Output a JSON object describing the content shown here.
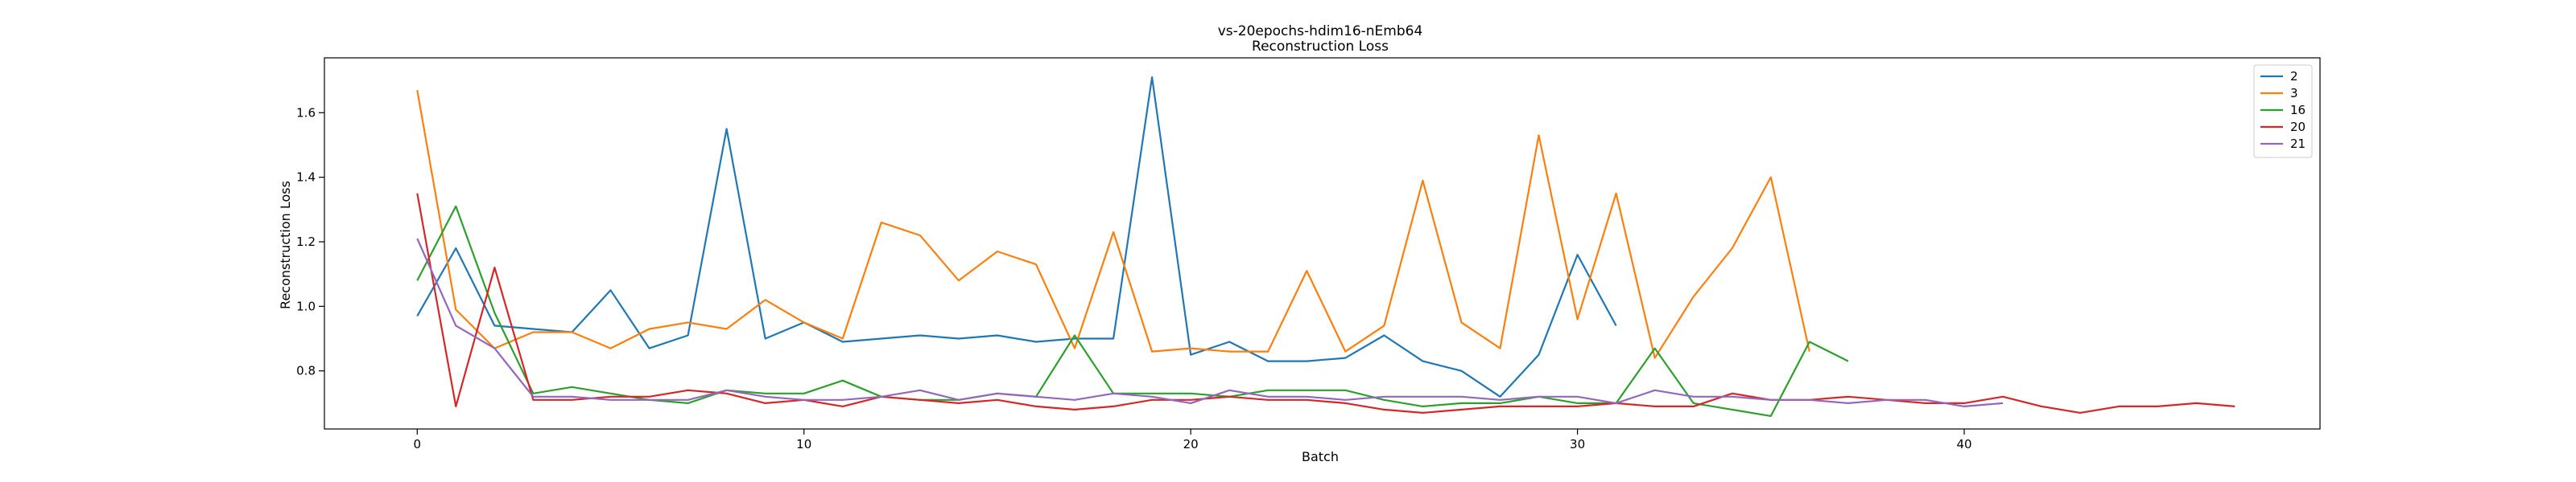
{
  "chart_data": {
    "type": "line",
    "title": "vs-20epochs-hdim16-nEmb64",
    "subtitle": "Reconstruction Loss",
    "xlabel": "Batch",
    "ylabel": "Reconstruction Loss",
    "xlim": [
      -2.4,
      49.2
    ],
    "ylim": [
      0.62,
      1.77
    ],
    "xticks": [
      0,
      10,
      20,
      30,
      40
    ],
    "yticks": [
      0.8,
      1.0,
      1.2,
      1.4,
      1.6
    ],
    "ytick_labels": [
      "0.8",
      "1.0",
      "1.2",
      "1.4",
      "1.6"
    ],
    "grid": false,
    "legend": "top-right",
    "series": [
      {
        "name": "2",
        "color": "#1f77b4",
        "x": [
          0,
          1,
          2,
          3,
          4,
          5,
          6,
          7,
          8,
          9,
          10,
          11,
          12,
          13,
          14,
          15,
          16,
          17,
          18,
          19,
          20,
          21,
          22,
          23,
          24,
          25,
          26,
          27,
          28,
          29,
          30,
          31
        ],
        "values": [
          0.97,
          1.18,
          0.94,
          0.93,
          0.92,
          1.05,
          0.87,
          0.91,
          1.55,
          0.9,
          0.95,
          0.89,
          0.9,
          0.91,
          0.9,
          0.91,
          0.89,
          0.9,
          0.9,
          1.71,
          0.85,
          0.89,
          0.83,
          0.83,
          0.84,
          0.91,
          0.83,
          0.8,
          0.72,
          0.85,
          1.16,
          0.94
        ]
      },
      {
        "name": "3",
        "color": "#ff7f0e",
        "x": [
          0,
          1,
          2,
          3,
          4,
          5,
          6,
          7,
          8,
          9,
          10,
          11,
          12,
          13,
          14,
          15,
          16,
          17,
          18,
          19,
          20,
          21,
          22,
          23,
          24,
          25,
          26,
          27,
          28,
          29,
          30,
          31,
          32,
          33,
          34,
          35,
          36
        ],
        "values": [
          1.67,
          0.99,
          0.87,
          0.92,
          0.92,
          0.87,
          0.93,
          0.95,
          0.93,
          1.02,
          0.95,
          0.9,
          1.26,
          1.22,
          1.08,
          1.17,
          1.13,
          0.87,
          1.23,
          0.86,
          0.87,
          0.86,
          0.86,
          1.11,
          0.86,
          0.94,
          1.39,
          0.95,
          0.87,
          1.53,
          0.96,
          1.35,
          0.84,
          1.03,
          1.18,
          1.4,
          0.86
        ]
      },
      {
        "name": "16",
        "color": "#2ca02c",
        "x": [
          0,
          1,
          2,
          3,
          4,
          5,
          6,
          7,
          8,
          9,
          10,
          11,
          12,
          13,
          14,
          15,
          16,
          17,
          18,
          19,
          20,
          21,
          22,
          23,
          24,
          25,
          26,
          27,
          28,
          29,
          30,
          31,
          32,
          33,
          34,
          35,
          36,
          37
        ],
        "values": [
          1.08,
          1.31,
          0.98,
          0.73,
          0.75,
          0.73,
          0.71,
          0.7,
          0.74,
          0.73,
          0.73,
          0.77,
          0.72,
          0.71,
          0.71,
          0.73,
          0.72,
          0.91,
          0.73,
          0.73,
          0.73,
          0.72,
          0.74,
          0.74,
          0.74,
          0.71,
          0.69,
          0.7,
          0.7,
          0.72,
          0.7,
          0.7,
          0.87,
          0.7,
          0.68,
          0.66,
          0.89,
          0.83
        ]
      },
      {
        "name": "20",
        "color": "#d62728",
        "x": [
          0,
          1,
          2,
          3,
          4,
          5,
          6,
          7,
          8,
          9,
          10,
          11,
          12,
          13,
          14,
          15,
          16,
          17,
          18,
          19,
          20,
          21,
          22,
          23,
          24,
          25,
          26,
          27,
          28,
          29,
          30,
          31,
          32,
          33,
          34,
          35,
          36,
          37,
          38,
          39,
          40,
          41,
          42,
          43,
          44,
          45,
          46,
          47
        ],
        "values": [
          1.35,
          0.69,
          1.12,
          0.71,
          0.71,
          0.72,
          0.72,
          0.74,
          0.73,
          0.7,
          0.71,
          0.69,
          0.72,
          0.71,
          0.7,
          0.71,
          0.69,
          0.68,
          0.69,
          0.71,
          0.71,
          0.72,
          0.71,
          0.71,
          0.7,
          0.68,
          0.67,
          0.68,
          0.69,
          0.69,
          0.69,
          0.7,
          0.69,
          0.69,
          0.73,
          0.71,
          0.71,
          0.72,
          0.71,
          0.7,
          0.7,
          0.72,
          0.69,
          0.67,
          0.69,
          0.69,
          0.7,
          0.69
        ]
      },
      {
        "name": "21",
        "color": "#9467bd",
        "x": [
          0,
          1,
          2,
          3,
          4,
          5,
          6,
          7,
          8,
          9,
          10,
          11,
          12,
          13,
          14,
          15,
          16,
          17,
          18,
          19,
          20,
          21,
          22,
          23,
          24,
          25,
          26,
          27,
          28,
          29,
          30,
          31,
          32,
          33,
          34,
          35,
          36,
          37,
          38,
          39,
          40,
          41
        ],
        "values": [
          1.21,
          0.94,
          0.87,
          0.72,
          0.72,
          0.71,
          0.71,
          0.71,
          0.74,
          0.72,
          0.71,
          0.71,
          0.72,
          0.74,
          0.71,
          0.73,
          0.72,
          0.71,
          0.73,
          0.72,
          0.7,
          0.74,
          0.72,
          0.72,
          0.71,
          0.72,
          0.72,
          0.72,
          0.71,
          0.72,
          0.72,
          0.7,
          0.74,
          0.72,
          0.72,
          0.71,
          0.71,
          0.7,
          0.71,
          0.71,
          0.69,
          0.7
        ]
      }
    ]
  }
}
